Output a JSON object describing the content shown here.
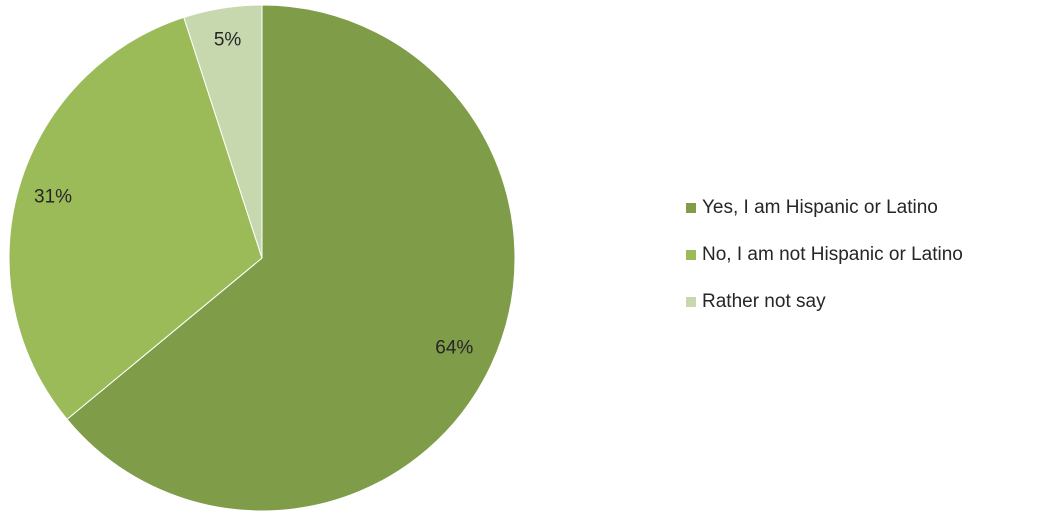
{
  "chart_data": {
    "type": "pie",
    "categories": [
      "Yes, I am Hispanic or Latino",
      "No, I am not Hispanic or Latino",
      "Rather not say"
    ],
    "values": [
      64,
      31,
      5
    ],
    "data_labels": [
      "64%",
      "31%",
      "5%"
    ],
    "colors": [
      "#7f9c48",
      "#9bbb59",
      "#c8d8ae"
    ],
    "start_angle": "12 o'clock",
    "direction": "clockwise",
    "legend_position": "right"
  },
  "legend": {
    "items": [
      {
        "label": "Yes, I am Hispanic or Latino",
        "color": "#7f9c48"
      },
      {
        "label": "No, I am not Hispanic or Latino",
        "color": "#9bbb59"
      },
      {
        "label": "Rather not say",
        "color": "#c8d8ae"
      }
    ]
  }
}
